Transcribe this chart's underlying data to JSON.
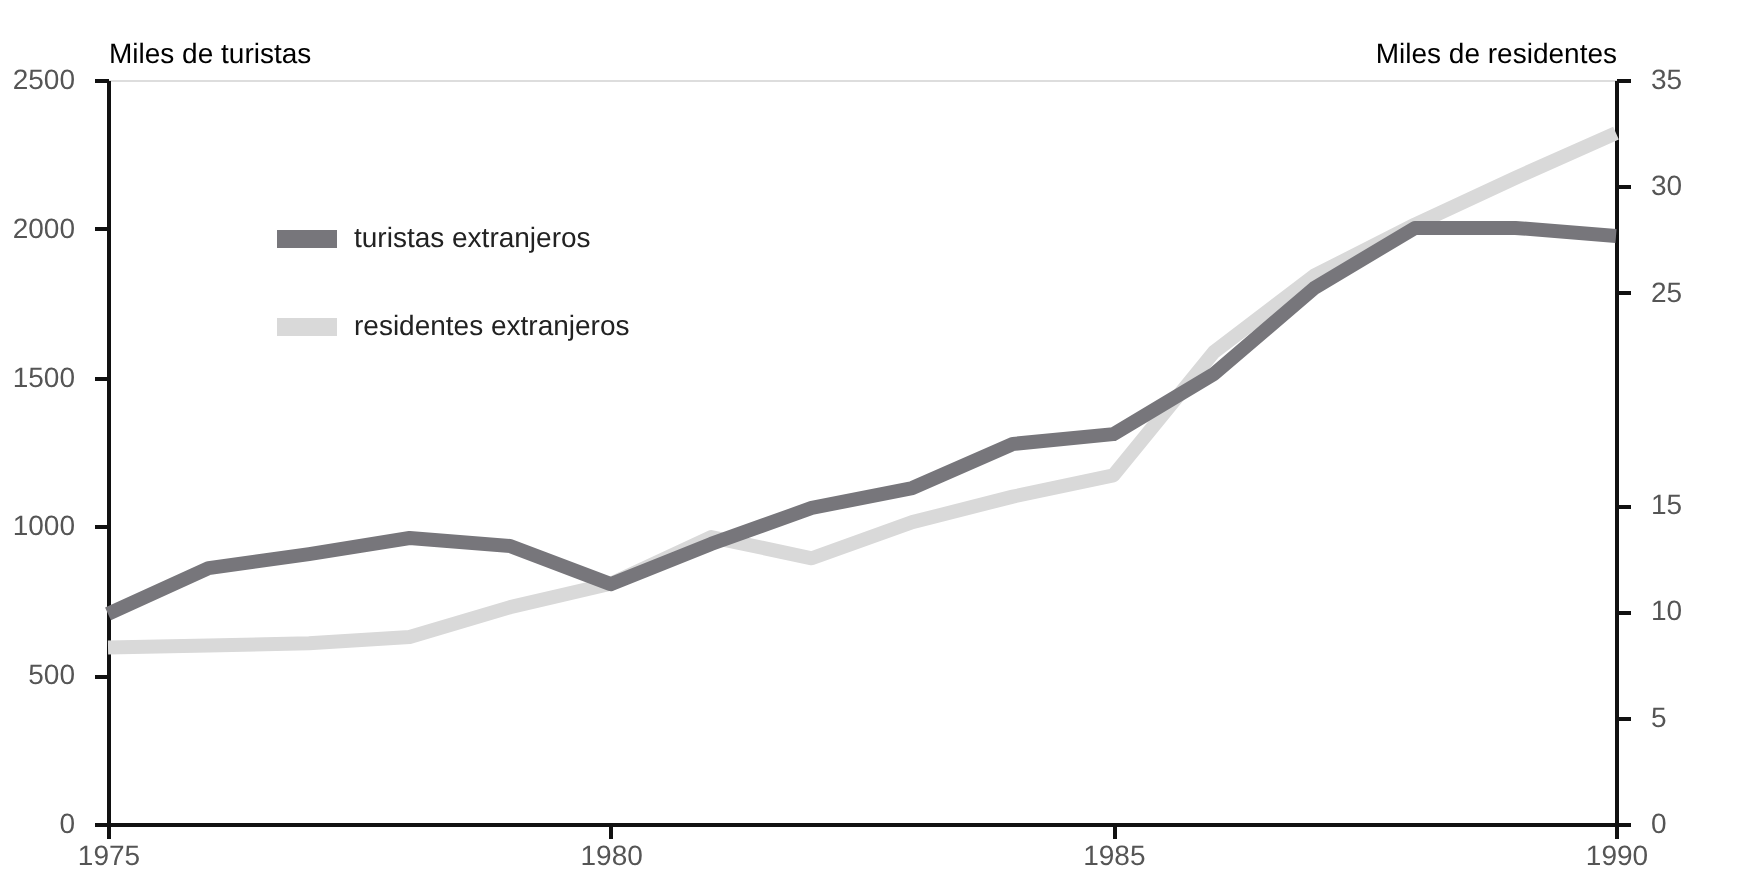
{
  "chart_data": {
    "type": "line",
    "ylabel": "Miles de turistas",
    "y2label": "Miles de residentes",
    "x": [
      1975,
      1976,
      1977,
      1978,
      1979,
      1980,
      1981,
      1982,
      1983,
      1984,
      1985,
      1986,
      1987,
      1988,
      1989,
      1990
    ],
    "series": [
      {
        "name": "turistas extranjeros",
        "color": "#77767b",
        "axis": "y",
        "values": [
          706,
          860,
          907,
          961,
          934,
          806,
          941,
          1062,
          1129,
          1277,
          1310,
          1512,
          1801,
          2003,
          2003,
          1976
        ]
      },
      {
        "name": "residentes extranjeros",
        "color": "#d9d9d9",
        "axis": "y2",
        "values": [
          8.3,
          8.4,
          8.5,
          8.8,
          10.2,
          11.3,
          13.5,
          12.5,
          14.2,
          15.4,
          16.4,
          22.2,
          25.8,
          28.2,
          30.4,
          32.5
        ]
      }
    ],
    "xlim": [
      1975,
      1990
    ],
    "xticks": [
      1975,
      1980,
      1985,
      1990
    ],
    "ylim": [
      0,
      2500
    ],
    "yticks": [
      0,
      500,
      1000,
      1500,
      2000,
      2500
    ],
    "y2lim": [
      0,
      35
    ],
    "y2ticks": [
      0,
      5,
      10,
      15,
      25,
      30,
      35
    ],
    "grid": false,
    "legend": "top left",
    "marker": "none",
    "line_style": "solid"
  }
}
